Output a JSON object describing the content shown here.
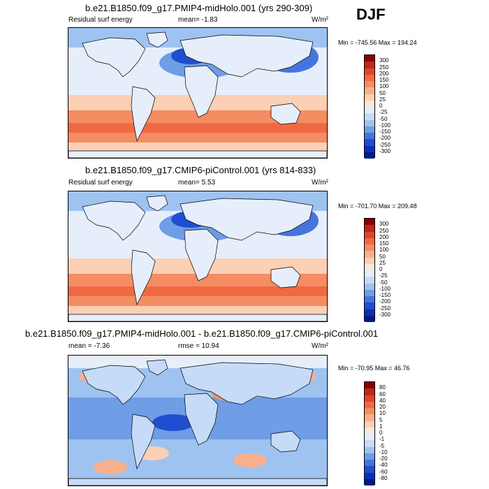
{
  "season": "DJF",
  "panels": [
    {
      "title": "b.e21.B1850.f09_g17.PMIP4-midHolo.001 (yrs 290-309)",
      "left_label": "Residual surf energy",
      "center_label": "mean=  -1.83",
      "units": "W/m²",
      "minmax": "Min = -745.56 Max = 194.24",
      "levels": [
        "300",
        "250",
        "200",
        "150",
        "100",
        "50",
        "25",
        "0",
        "-25",
        "-50",
        "-100",
        "-150",
        "-200",
        "-250",
        "-300"
      ],
      "colors": [
        "#8b0000",
        "#c0261a",
        "#e0452a",
        "#ef6a42",
        "#f58c62",
        "#f9b08a",
        "#fbd0b4",
        "#fbe8da",
        "#e6eefb",
        "#c6dbf7",
        "#9ec3f0",
        "#6f9de6",
        "#4575dc",
        "#1f4ed0",
        "#0a2fb8",
        "#001a8c"
      ],
      "chart_data": {
        "type": "heatmap",
        "title": "b.e21.B1850.f09_g17.PMIP4-midHolo.001 (yrs 290-309)",
        "variable": "Residual surf energy",
        "units": "W/m²",
        "mean": -1.83,
        "min": -745.56,
        "max": 194.24,
        "contour_levels": [
          -300,
          -250,
          -200,
          -150,
          -100,
          -50,
          -25,
          0,
          25,
          50,
          100,
          150,
          200,
          250,
          300
        ]
      }
    },
    {
      "title": "b.e21.B1850.f09_g17.CMIP6-piControl.001 (yrs 814-833)",
      "left_label": "Residual surf energy",
      "center_label": "mean=   5.53",
      "units": "W/m²",
      "minmax": "Min = -701.70 Max = 209.48",
      "levels": [
        "300",
        "250",
        "200",
        "150",
        "100",
        "50",
        "25",
        "0",
        "-25",
        "-50",
        "-100",
        "-150",
        "-200",
        "-250",
        "-300"
      ],
      "colors": [
        "#8b0000",
        "#c0261a",
        "#e0452a",
        "#ef6a42",
        "#f58c62",
        "#f9b08a",
        "#fbd0b4",
        "#fbe8da",
        "#e6eefb",
        "#c6dbf7",
        "#9ec3f0",
        "#6f9de6",
        "#4575dc",
        "#1f4ed0",
        "#0a2fb8",
        "#001a8c"
      ],
      "chart_data": {
        "type": "heatmap",
        "title": "b.e21.B1850.f09_g17.CMIP6-piControl.001 (yrs 814-833)",
        "variable": "Residual surf energy",
        "units": "W/m²",
        "mean": 5.53,
        "min": -701.7,
        "max": 209.48,
        "contour_levels": [
          -300,
          -250,
          -200,
          -150,
          -100,
          -50,
          -25,
          0,
          25,
          50,
          100,
          150,
          200,
          250,
          300
        ]
      }
    },
    {
      "title": "b.e21.B1850.f09_g17.PMIP4-midHolo.001 - b.e21.B1850.f09_g17.CMIP6-piControl.001",
      "left_label": "mean =  -7.36",
      "center_label": "rmse =  10.94",
      "units": "W/m²",
      "minmax": "Min = -70.95 Max =  46.76",
      "levels": [
        "80",
        "60",
        "40",
        "20",
        "10",
        "5",
        "1",
        "0",
        "-1",
        "-5",
        "-10",
        "-20",
        "-40",
        "-60",
        "-80"
      ],
      "colors": [
        "#8b0000",
        "#c0261a",
        "#e0452a",
        "#ef6a42",
        "#f58c62",
        "#f9b08a",
        "#fbd0b4",
        "#fbe8da",
        "#e6eefb",
        "#c6dbf7",
        "#9ec3f0",
        "#6f9de6",
        "#4575dc",
        "#1f4ed0",
        "#0a2fb8",
        "#001a8c"
      ],
      "chart_data": {
        "type": "heatmap",
        "title": "b.e21.B1850.f09_g17.PMIP4-midHolo.001 - b.e21.B1850.f09_g17.CMIP6-piControl.001",
        "units": "W/m²",
        "mean": -7.36,
        "rmse": 10.94,
        "min": -70.95,
        "max": 46.76,
        "contour_levels": [
          -80,
          -60,
          -40,
          -20,
          -10,
          -5,
          -1,
          0,
          1,
          5,
          10,
          20,
          40,
          60,
          80
        ]
      }
    }
  ]
}
